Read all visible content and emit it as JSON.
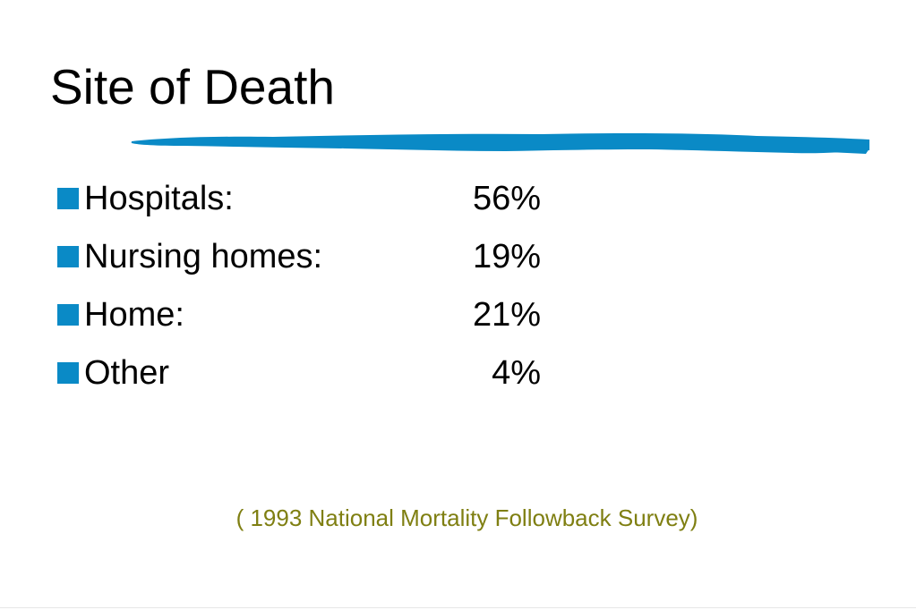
{
  "slide": {
    "title": "Site of Death",
    "accent_color": "#0a8ac6",
    "bullets": [
      {
        "label": "Hospitals:",
        "value": "56%"
      },
      {
        "label": "Nursing homes:",
        "value": "19%"
      },
      {
        "label": "Home:",
        "value": "21%"
      },
      {
        "label": "Other",
        "value": "4%"
      }
    ],
    "source": "( 1993 National Mortality Followback Survey)",
    "source_color": "#7f7f12"
  }
}
